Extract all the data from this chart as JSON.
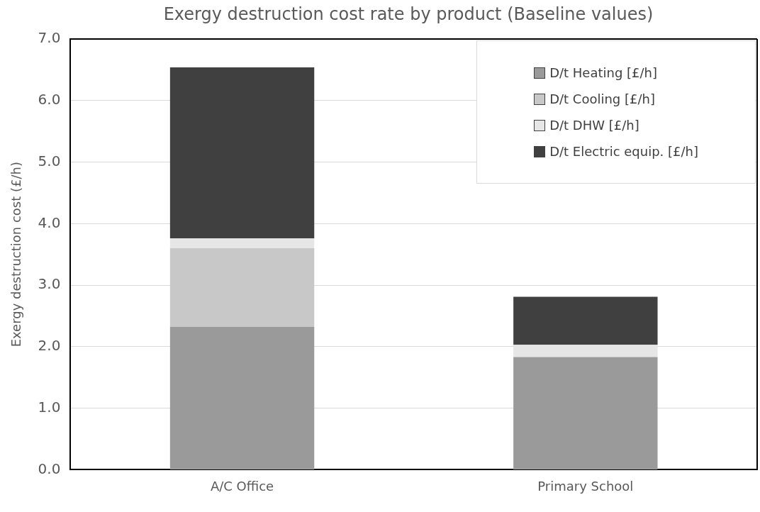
{
  "chart_data": {
    "type": "bar",
    "title": "Exergy destruction cost rate by product (Baseline values)",
    "ylabel": "Exergy destruction cost (£/h)",
    "categories": [
      "A/C Office",
      "Primary School"
    ],
    "stacked": true,
    "series": [
      {
        "name": "D/t Heating [£/h]",
        "color": "#9a9a9a",
        "values": [
          2.32,
          1.83
        ]
      },
      {
        "name": "D/t Cooling [£/h]",
        "color": "#c8c8c8",
        "values": [
          1.28,
          0
        ]
      },
      {
        "name": "D/t DHW [£/h]",
        "color": "#e6e6e6",
        "values": [
          0.16,
          0.2
        ]
      },
      {
        "name": "D/t Electric equip. [£/h]",
        "color": "#404040",
        "values": [
          2.78,
          0.78
        ]
      }
    ],
    "ylim": [
      0,
      7
    ],
    "yticks": [
      {
        "value": 0,
        "label": "0.0"
      },
      {
        "value": 1,
        "label": "1.0"
      },
      {
        "value": 2,
        "label": "2.0"
      },
      {
        "value": 3,
        "label": "3.0"
      },
      {
        "value": 4,
        "label": "4.0"
      },
      {
        "value": 5,
        "label": "5.0"
      },
      {
        "value": 6,
        "label": "6.0"
      },
      {
        "value": 7,
        "label": "7.0"
      }
    ],
    "grid": "y",
    "legend": "top right"
  }
}
